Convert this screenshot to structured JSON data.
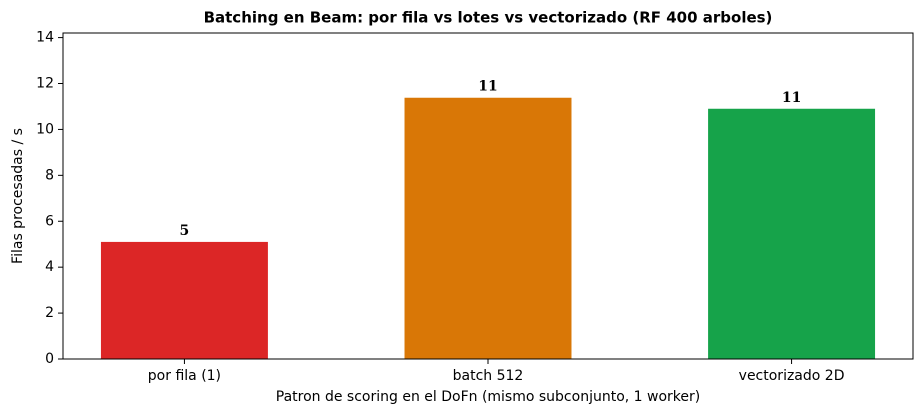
{
  "chart_data": {
    "type": "bar",
    "title": "Batching en Beam: por fila vs lotes vs vectorizado (RF 400 arboles)",
    "x_label": "Patron de scoring en el DoFn (mismo subconjunto, 1 worker)",
    "y_label": "Filas procesadas / s",
    "categories": [
      "por fila (1)",
      "batch 512",
      "vectorizado 2D"
    ],
    "values": [
      5.1,
      11.38,
      10.9
    ],
    "value_labels": [
      "5",
      "11",
      "11"
    ],
    "colors": [
      "#dc2626",
      "#d97706",
      "#16a34a"
    ],
    "ylim": [
      0,
      14.2
    ],
    "yticks": [
      0,
      2,
      4,
      6,
      8,
      10,
      12,
      14
    ],
    "grid": false
  }
}
